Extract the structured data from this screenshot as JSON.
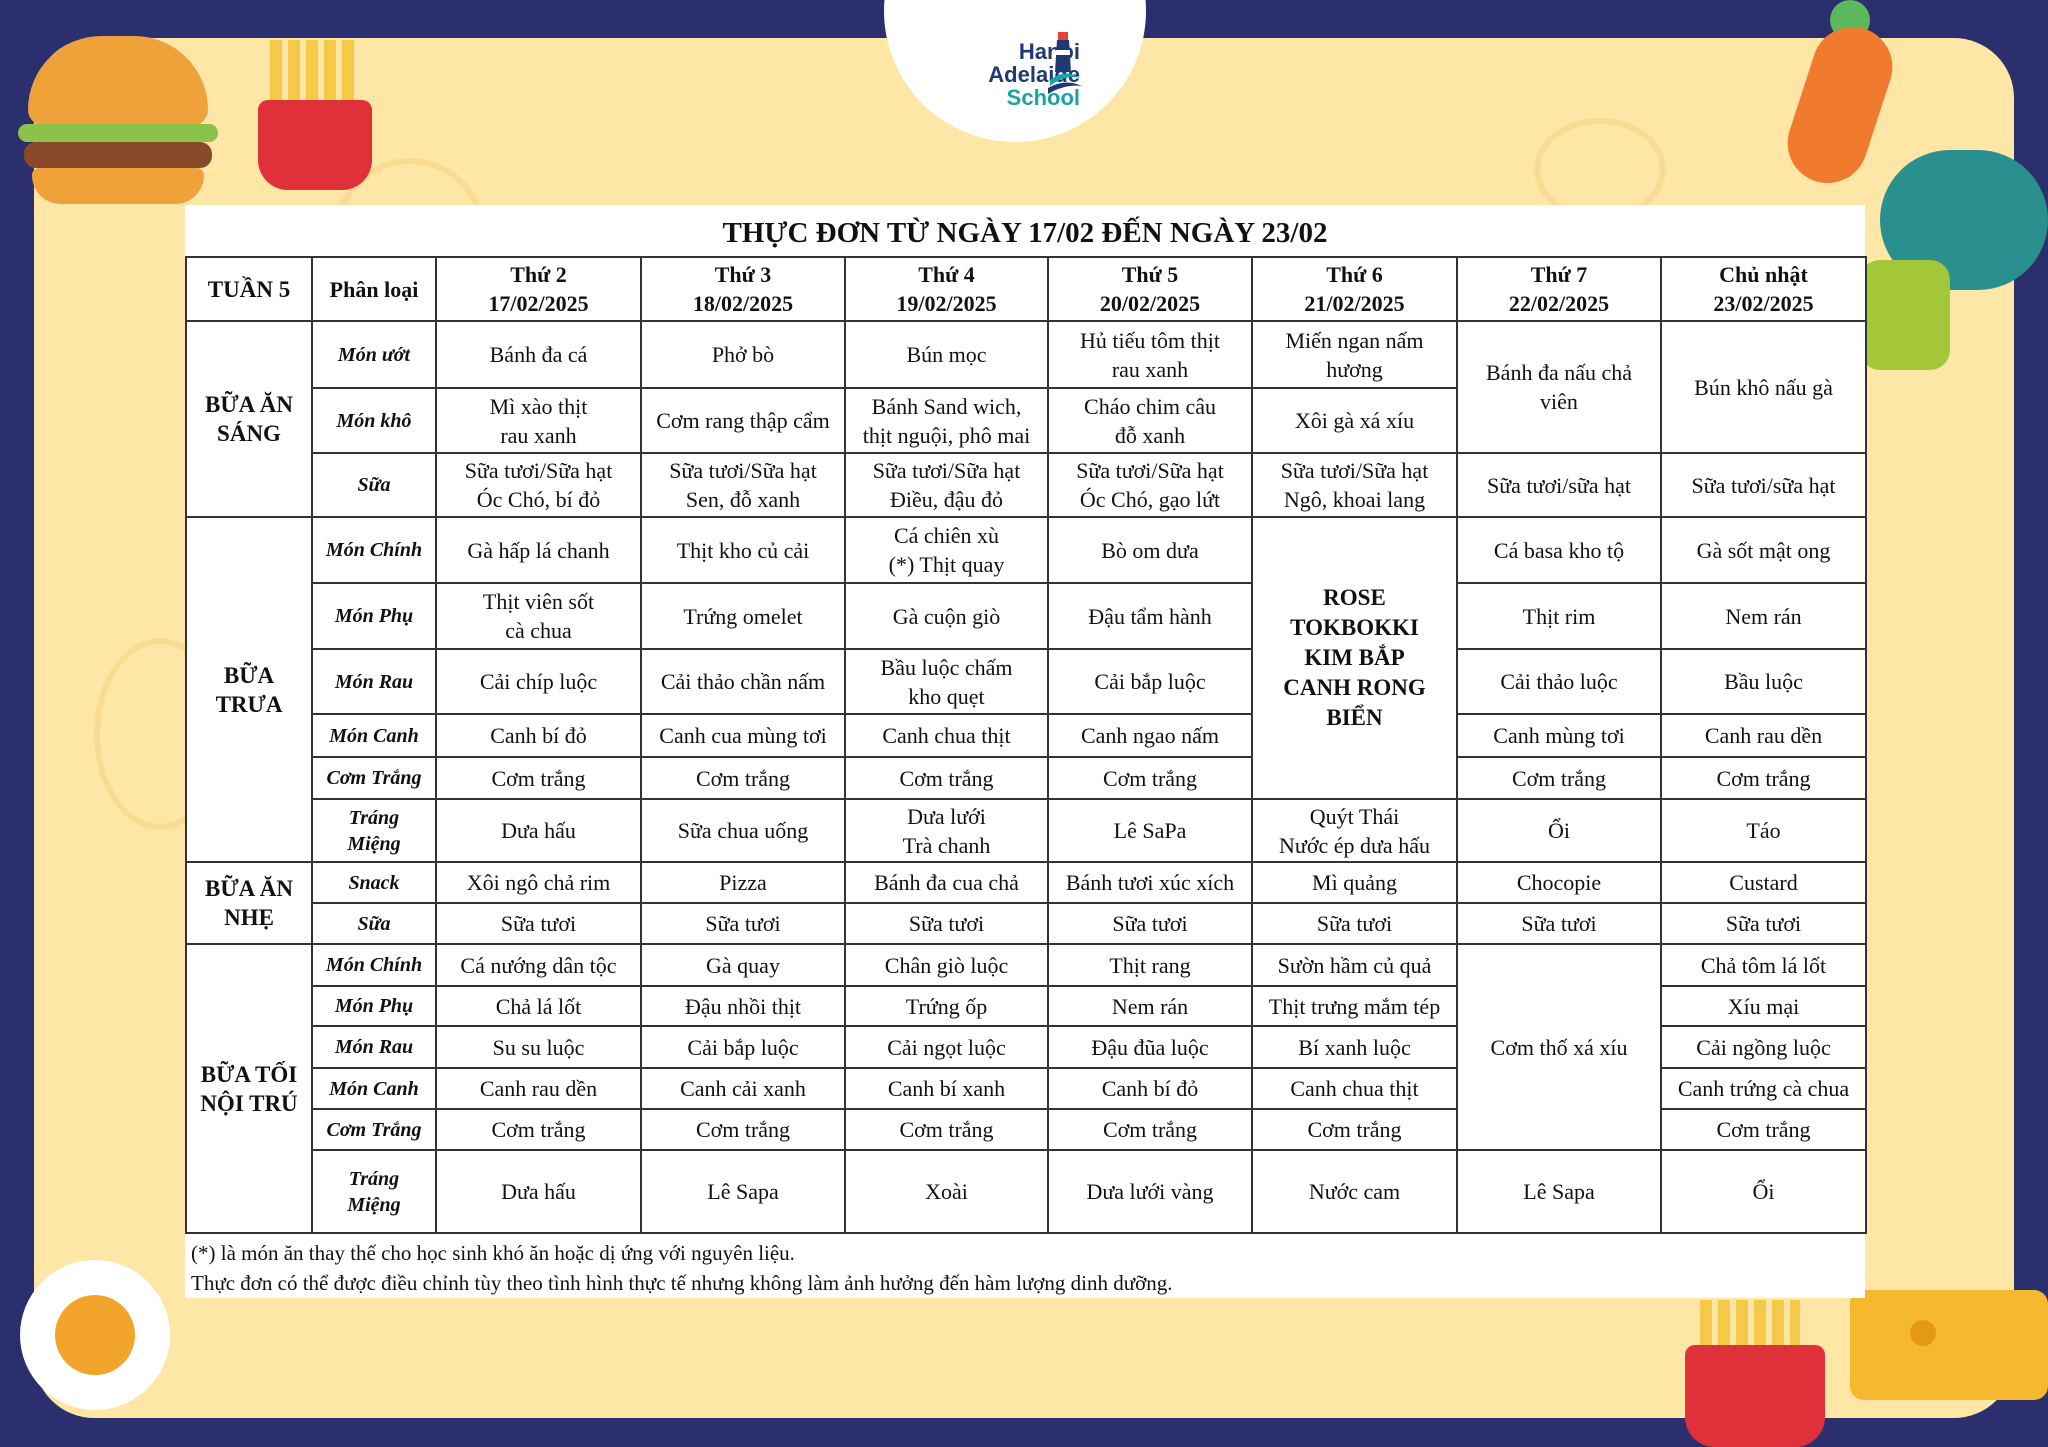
{
  "logo": {
    "line1": "Hanoi",
    "line2": "Adelaide",
    "line3": "School"
  },
  "colors": {
    "background": "#2c2f6e",
    "panel": "#fde6a6",
    "logo_navy": "#1f3a72",
    "logo_teal": "#19a3a8"
  },
  "menu": {
    "title": "THỰC ĐƠN TỪ NGÀY 17/02 ĐẾN NGÀY 23/02",
    "week_label": "TUẦN 5",
    "category_header": "Phân loại",
    "days": [
      {
        "name": "Thứ 2",
        "date": "17/02/2025"
      },
      {
        "name": "Thứ 3",
        "date": "18/02/2025"
      },
      {
        "name": "Thứ 4",
        "date": "19/02/2025"
      },
      {
        "name": "Thứ 5",
        "date": "20/02/2025"
      },
      {
        "name": "Thứ 6",
        "date": "21/02/2025"
      },
      {
        "name": "Thứ 7",
        "date": "22/02/2025"
      },
      {
        "name": "Chủ nhật",
        "date": "23/02/2025"
      }
    ],
    "sections": [
      {
        "name": "BỮA ĂN\nSÁNG",
        "rows": [
          {
            "category": "Món ướt",
            "cells": [
              {
                "t": "Bánh đa cá"
              },
              {
                "t": "Phở bò"
              },
              {
                "t": "Bún mọc"
              },
              {
                "t": "Hủ tiếu tôm thịt\nrau xanh"
              },
              {
                "t": "Miến ngan nấm\nhương"
              },
              {
                "t": "Bánh đa nấu chả\nviên",
                "rs": 2
              },
              {
                "t": "Bún khô nấu gà",
                "rs": 2
              }
            ]
          },
          {
            "category": "Món khô",
            "cells": [
              {
                "t": "Mì xào thịt\nrau xanh"
              },
              {
                "t": "Cơm rang thập cẩm"
              },
              {
                "t": "Bánh Sand wich,\nthịt nguội, phô mai"
              },
              {
                "t": "Cháo chim câu\nđỗ xanh"
              },
              {
                "t": "Xôi gà xá xíu"
              }
            ]
          },
          {
            "category": "Sữa",
            "cells": [
              {
                "t": "Sữa tươi/Sữa hạt\nÓc Chó, bí đỏ"
              },
              {
                "t": "Sữa tươi/Sữa hạt\nSen, đỗ xanh"
              },
              {
                "t": "Sữa tươi/Sữa hạt\nĐiều, đậu đỏ"
              },
              {
                "t": "Sữa tươi/Sữa hạt\nÓc Chó, gạo lứt"
              },
              {
                "t": "Sữa tươi/Sữa hạt\nNgô, khoai lang"
              },
              {
                "t": "Sữa tươi/sữa hạt"
              },
              {
                "t": "Sữa tươi/sữa hạt"
              }
            ]
          }
        ]
      },
      {
        "name": "BỮA\nTRƯA",
        "rows": [
          {
            "category": "Món Chính",
            "cells": [
              {
                "t": "Gà hấp lá chanh"
              },
              {
                "t": "Thịt kho củ cải"
              },
              {
                "t": "Cá chiên xù\n(*) Thịt quay"
              },
              {
                "t": "Bò om dưa"
              },
              {
                "t": "ROSE\nTOKBOKKI\nKIM BẮP\nCANH RONG\nBIỂN",
                "rs": 5,
                "bold": true
              },
              {
                "t": "Cá basa kho tộ"
              },
              {
                "t": "Gà sốt mật ong"
              }
            ]
          },
          {
            "category": "Món Phụ",
            "cells": [
              {
                "t": "Thịt viên sốt\ncà chua"
              },
              {
                "t": "Trứng omelet"
              },
              {
                "t": "Gà cuộn giò"
              },
              {
                "t": "Đậu tẩm hành"
              },
              {
                "t": "Thịt rim"
              },
              {
                "t": "Nem rán"
              }
            ]
          },
          {
            "category": "Món Rau",
            "cells": [
              {
                "t": "Cải chíp luộc"
              },
              {
                "t": "Cải thảo chần nấm"
              },
              {
                "t": "Bầu luộc chấm\nkho quẹt"
              },
              {
                "t": "Cải bắp luộc"
              },
              {
                "t": "Cải thảo luộc"
              },
              {
                "t": "Bầu luộc"
              }
            ]
          },
          {
            "category": "Món Canh",
            "cells": [
              {
                "t": "Canh bí đỏ"
              },
              {
                "t": "Canh cua mùng tơi"
              },
              {
                "t": "Canh chua thịt"
              },
              {
                "t": "Canh ngao nấm"
              },
              {
                "t": "Canh mùng tơi"
              },
              {
                "t": "Canh rau dền"
              }
            ]
          },
          {
            "category": "Cơm Trắng",
            "cells": [
              {
                "t": "Cơm trắng"
              },
              {
                "t": "Cơm trắng"
              },
              {
                "t": "Cơm trắng"
              },
              {
                "t": "Cơm trắng"
              },
              {
                "t": "Cơm trắng"
              },
              {
                "t": "Cơm trắng"
              }
            ]
          },
          {
            "category": "Tráng\nMiệng",
            "cells": [
              {
                "t": "Dưa hấu"
              },
              {
                "t": "Sữa chua uống"
              },
              {
                "t": "Dưa lưới\nTrà chanh"
              },
              {
                "t": "Lê SaPa"
              },
              {
                "t": "Quýt Thái\nNước ép dưa hấu"
              },
              {
                "t": "Ổi"
              },
              {
                "t": "Táo"
              }
            ]
          }
        ]
      },
      {
        "name": "BỮA ĂN\nNHẸ",
        "rows": [
          {
            "category": "Snack",
            "cells": [
              {
                "t": "Xôi ngô chả rim"
              },
              {
                "t": "Pizza"
              },
              {
                "t": "Bánh đa cua chả"
              },
              {
                "t": "Bánh tươi xúc xích"
              },
              {
                "t": "Mì quảng"
              },
              {
                "t": "Chocopie"
              },
              {
                "t": "Custard"
              }
            ]
          },
          {
            "category": "Sữa",
            "cells": [
              {
                "t": "Sữa tươi"
              },
              {
                "t": "Sữa tươi"
              },
              {
                "t": "Sữa tươi"
              },
              {
                "t": "Sữa tươi"
              },
              {
                "t": "Sữa tươi"
              },
              {
                "t": "Sữa tươi"
              },
              {
                "t": "Sữa tươi"
              }
            ]
          }
        ]
      },
      {
        "name": "BỮA TỐI\nNỘI TRÚ",
        "rows": [
          {
            "category": "Món Chính",
            "cells": [
              {
                "t": "Cá nướng dân tộc"
              },
              {
                "t": "Gà quay"
              },
              {
                "t": "Chân giò luộc"
              },
              {
                "t": "Thịt rang"
              },
              {
                "t": "Sườn hầm củ quả"
              },
              {
                "t": "Cơm thố xá xíu",
                "rs": 5
              },
              {
                "t": "Chả tôm lá lốt"
              }
            ]
          },
          {
            "category": "Món Phụ",
            "cells": [
              {
                "t": "Chả lá lốt"
              },
              {
                "t": "Đậu nhồi thịt"
              },
              {
                "t": "Trứng ốp"
              },
              {
                "t": "Nem rán"
              },
              {
                "t": "Thịt trưng mắm tép"
              },
              {
                "t": "Xíu mại"
              }
            ]
          },
          {
            "category": "Món Rau",
            "cells": [
              {
                "t": "Su su luộc"
              },
              {
                "t": "Cải bắp luộc"
              },
              {
                "t": "Cải ngọt luộc"
              },
              {
                "t": "Đậu đũa luộc"
              },
              {
                "t": "Bí xanh luộc"
              },
              {
                "t": "Cải ngồng luộc"
              }
            ]
          },
          {
            "category": "Món Canh",
            "cells": [
              {
                "t": "Canh rau dền"
              },
              {
                "t": "Canh cải xanh"
              },
              {
                "t": "Canh bí xanh"
              },
              {
                "t": "Canh bí đỏ"
              },
              {
                "t": "Canh chua thịt"
              },
              {
                "t": "Canh trứng cà chua"
              }
            ]
          },
          {
            "category": "Cơm Trắng",
            "cells": [
              {
                "t": "Cơm trắng"
              },
              {
                "t": "Cơm trắng"
              },
              {
                "t": "Cơm trắng"
              },
              {
                "t": "Cơm trắng"
              },
              {
                "t": "Cơm trắng"
              },
              {
                "t": "Cơm trắng"
              }
            ]
          },
          {
            "category": "Tráng\nMiệng",
            "cells": [
              {
                "t": "Dưa hấu"
              },
              {
                "t": "Lê Sapa"
              },
              {
                "t": "Xoài"
              },
              {
                "t": "Dưa lưới vàng"
              },
              {
                "t": "Nước cam"
              },
              {
                "t": "Lê Sapa"
              },
              {
                "t": "Ổi"
              }
            ]
          }
        ]
      }
    ],
    "notes": [
      "(*) là món ăn thay thế cho học sinh khó ăn hoặc dị ứng với nguyên liệu.",
      "Thực đơn có thể được điều chỉnh tùy theo tình hình thực tế nhưng không làm ảnh hưởng đến hàm lượng dinh dưỡng."
    ]
  }
}
